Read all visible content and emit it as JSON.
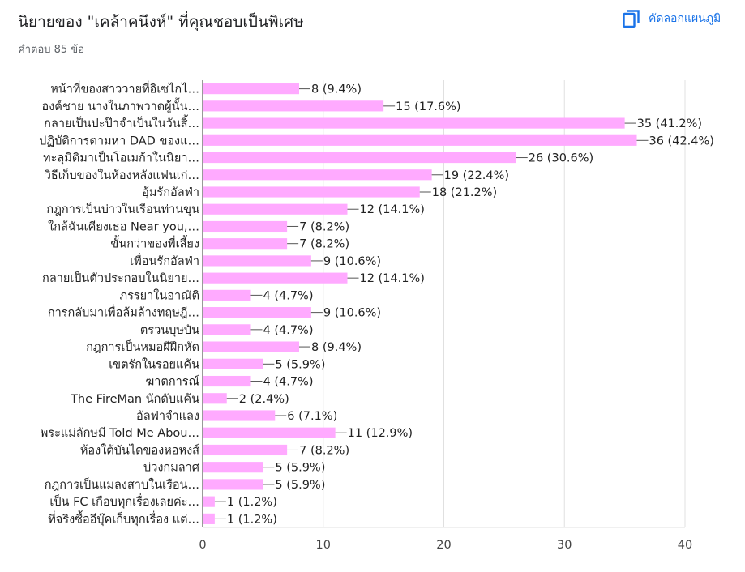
{
  "header": {
    "title": "นิยายของ \"เคล้าคนึงห์\" ที่คุณชอบเป็นพิเศษ",
    "subtitle": "คำตอบ 85 ข้อ",
    "copy_label": "คัดลอกแผนภูมิ",
    "copy_icon": "copy-icon"
  },
  "chart_data": {
    "type": "bar",
    "orientation": "horizontal",
    "categories": [
      "หน้าที่ของสาววายที่อิเซไกไ…",
      "องค์ชาย นางในภาพวาดผู้นั้น…",
      "กลายเป็นปะป๊าจำเป็นในวันสิ้…",
      "ปฏิบัติการตามหา DAD ของแ…",
      "ทะลุมิติมาเป็นโอเมก้าในนิยา…",
      "วิธีเก็บของในห้องหลังแฟนเก่…",
      "อุ้มรักอัลฟ่า",
      "กฎการเป็นบ่าวในเรือนท่านขุน",
      "ใกล้ฉันเคียงเธอ Near you,…",
      "ขั้นกว่าของพี่เลี้ยง",
      "เพื่อนรักอัลฟ่า",
      "กลายเป็นตัวประกอบในนิยาย…",
      "ภรรยาในอาณัติ",
      "การกลับมาเพื่อล้มล้างทฤษฎี…",
      "ตรวนบุษบัน",
      "กฎการเป็นหมอผีฝึกหัด",
      "เขตรักในรอยแค้น",
      "ฆาตการณ์",
      "The FireMan นักดับแค้น",
      "อัลฟ่าจำแลง",
      "พระแม่ลักษมี Told Me Abou…",
      "ห้องใต้บันไดของหอหงส์",
      "บ่วงกมลาศ",
      "กฎการเป็นแมลงสาบในเรือน…",
      "เป็น FC เกือบทุกเรื่องเลยค่ะ…",
      "ที่จริงซื้ออีบุ๊คเก็บทุกเรื่อง แต่…"
    ],
    "values": [
      8,
      15,
      35,
      36,
      26,
      19,
      18,
      12,
      7,
      7,
      9,
      12,
      4,
      9,
      4,
      8,
      5,
      4,
      2,
      6,
      11,
      7,
      5,
      5,
      1,
      1
    ],
    "value_labels": [
      "8 (9.4%)",
      "15 (17.6%)",
      "35 (41.2%)",
      "36 (42.4%)",
      "26 (30.6%)",
      "19 (22.4%)",
      "18 (21.2%)",
      "12 (14.1%)",
      "7 (8.2%)",
      "7 (8.2%)",
      "9 (10.6%)",
      "12 (14.1%)",
      "4 (4.7%)",
      "9 (10.6%)",
      "4 (4.7%)",
      "8 (9.4%)",
      "5 (5.9%)",
      "4 (4.7%)",
      "2 (2.4%)",
      "6 (7.1%)",
      "11 (12.9%)",
      "7 (8.2%)",
      "5 (5.9%)",
      "5 (5.9%)",
      "1 (1.2%)",
      "1 (1.2%)"
    ],
    "xlim": [
      0,
      40
    ],
    "x_ticks": [
      "0",
      "10",
      "20",
      "30",
      "40"
    ],
    "grid": true,
    "bar_color": "#ffaaff",
    "gridline_color": "#e0e0e0",
    "axis_color": "#333333"
  }
}
